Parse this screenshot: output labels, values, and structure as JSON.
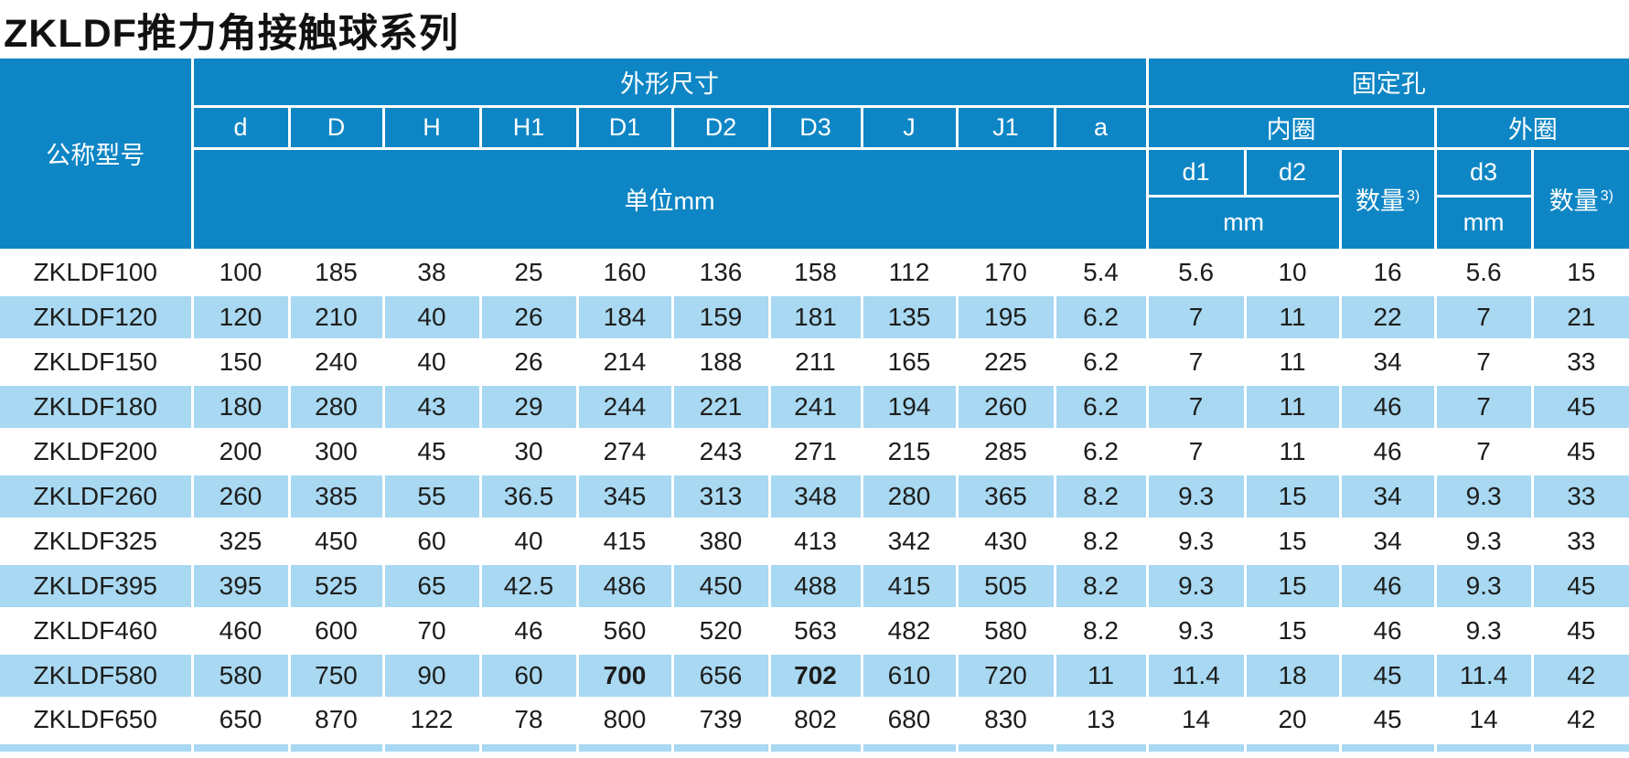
{
  "title": "ZKLDF推力角接触球系列",
  "colors": {
    "header_blue": "#0e86c5",
    "row_blue": "#a8d8f2",
    "text_dark": "#1d1d1b"
  },
  "table": {
    "header": {
      "model": "公称型号",
      "dims_group": "外形尺寸",
      "dims_cols": [
        "d",
        "D",
        "H",
        "H1",
        "D1",
        "D2",
        "D3",
        "J",
        "J1",
        "a"
      ],
      "dims_unit": "单位mm",
      "holes_group": "固定孔",
      "inner_group": "内圈",
      "outer_group": "外圈",
      "inner_d1": "d1",
      "inner_d2": "d2",
      "outer_d3": "d3",
      "qty_label": "数量",
      "qty_sup": "3)",
      "mm": "mm"
    },
    "rows": [
      {
        "model": "ZKLDF100",
        "values": [
          "100",
          "185",
          "38",
          "25",
          "160",
          "136",
          "158",
          "112",
          "170",
          "5.4",
          "5.6",
          "10",
          "16",
          "5.6",
          "15"
        ]
      },
      {
        "model": "ZKLDF120",
        "values": [
          "120",
          "210",
          "40",
          "26",
          "184",
          "159",
          "181",
          "135",
          "195",
          "6.2",
          "7",
          "11",
          "22",
          "7",
          "21"
        ]
      },
      {
        "model": "ZKLDF150",
        "values": [
          "150",
          "240",
          "40",
          "26",
          "214",
          "188",
          "211",
          "165",
          "225",
          "6.2",
          "7",
          "11",
          "34",
          "7",
          "33"
        ]
      },
      {
        "model": "ZKLDF180",
        "values": [
          "180",
          "280",
          "43",
          "29",
          "244",
          "221",
          "241",
          "194",
          "260",
          "6.2",
          "7",
          "11",
          "46",
          "7",
          "45"
        ]
      },
      {
        "model": "ZKLDF200",
        "values": [
          "200",
          "300",
          "45",
          "30",
          "274",
          "243",
          "271",
          "215",
          "285",
          "6.2",
          "7",
          "11",
          "46",
          "7",
          "45"
        ]
      },
      {
        "model": "ZKLDF260",
        "values": [
          "260",
          "385",
          "55",
          "36.5",
          "345",
          "313",
          "348",
          "280",
          "365",
          "8.2",
          "9.3",
          "15",
          "34",
          "9.3",
          "33"
        ]
      },
      {
        "model": "ZKLDF325",
        "values": [
          "325",
          "450",
          "60",
          "40",
          "415",
          "380",
          "413",
          "342",
          "430",
          "8.2",
          "9.3",
          "15",
          "34",
          "9.3",
          "33"
        ]
      },
      {
        "model": "ZKLDF395",
        "values": [
          "395",
          "525",
          "65",
          "42.5",
          "486",
          "450",
          "488",
          "415",
          "505",
          "8.2",
          "9.3",
          "15",
          "46",
          "9.3",
          "45"
        ]
      },
      {
        "model": "ZKLDF460",
        "values": [
          "460",
          "600",
          "70",
          "46",
          "560",
          "520",
          "563",
          "482",
          "580",
          "8.2",
          "9.3",
          "15",
          "46",
          "9.3",
          "45"
        ]
      },
      {
        "model": "ZKLDF580",
        "values": [
          "580",
          "750",
          "90",
          "60",
          "700",
          "656",
          "702",
          "610",
          "720",
          "11",
          "11.4",
          "18",
          "45",
          "11.4",
          "42"
        ],
        "bold": [
          4,
          6
        ]
      },
      {
        "model": "ZKLDF650",
        "values": [
          "650",
          "870",
          "122",
          "78",
          "800",
          "739",
          "802",
          "680",
          "830",
          "13",
          "14",
          "20",
          "45",
          "14",
          "42"
        ]
      }
    ]
  }
}
